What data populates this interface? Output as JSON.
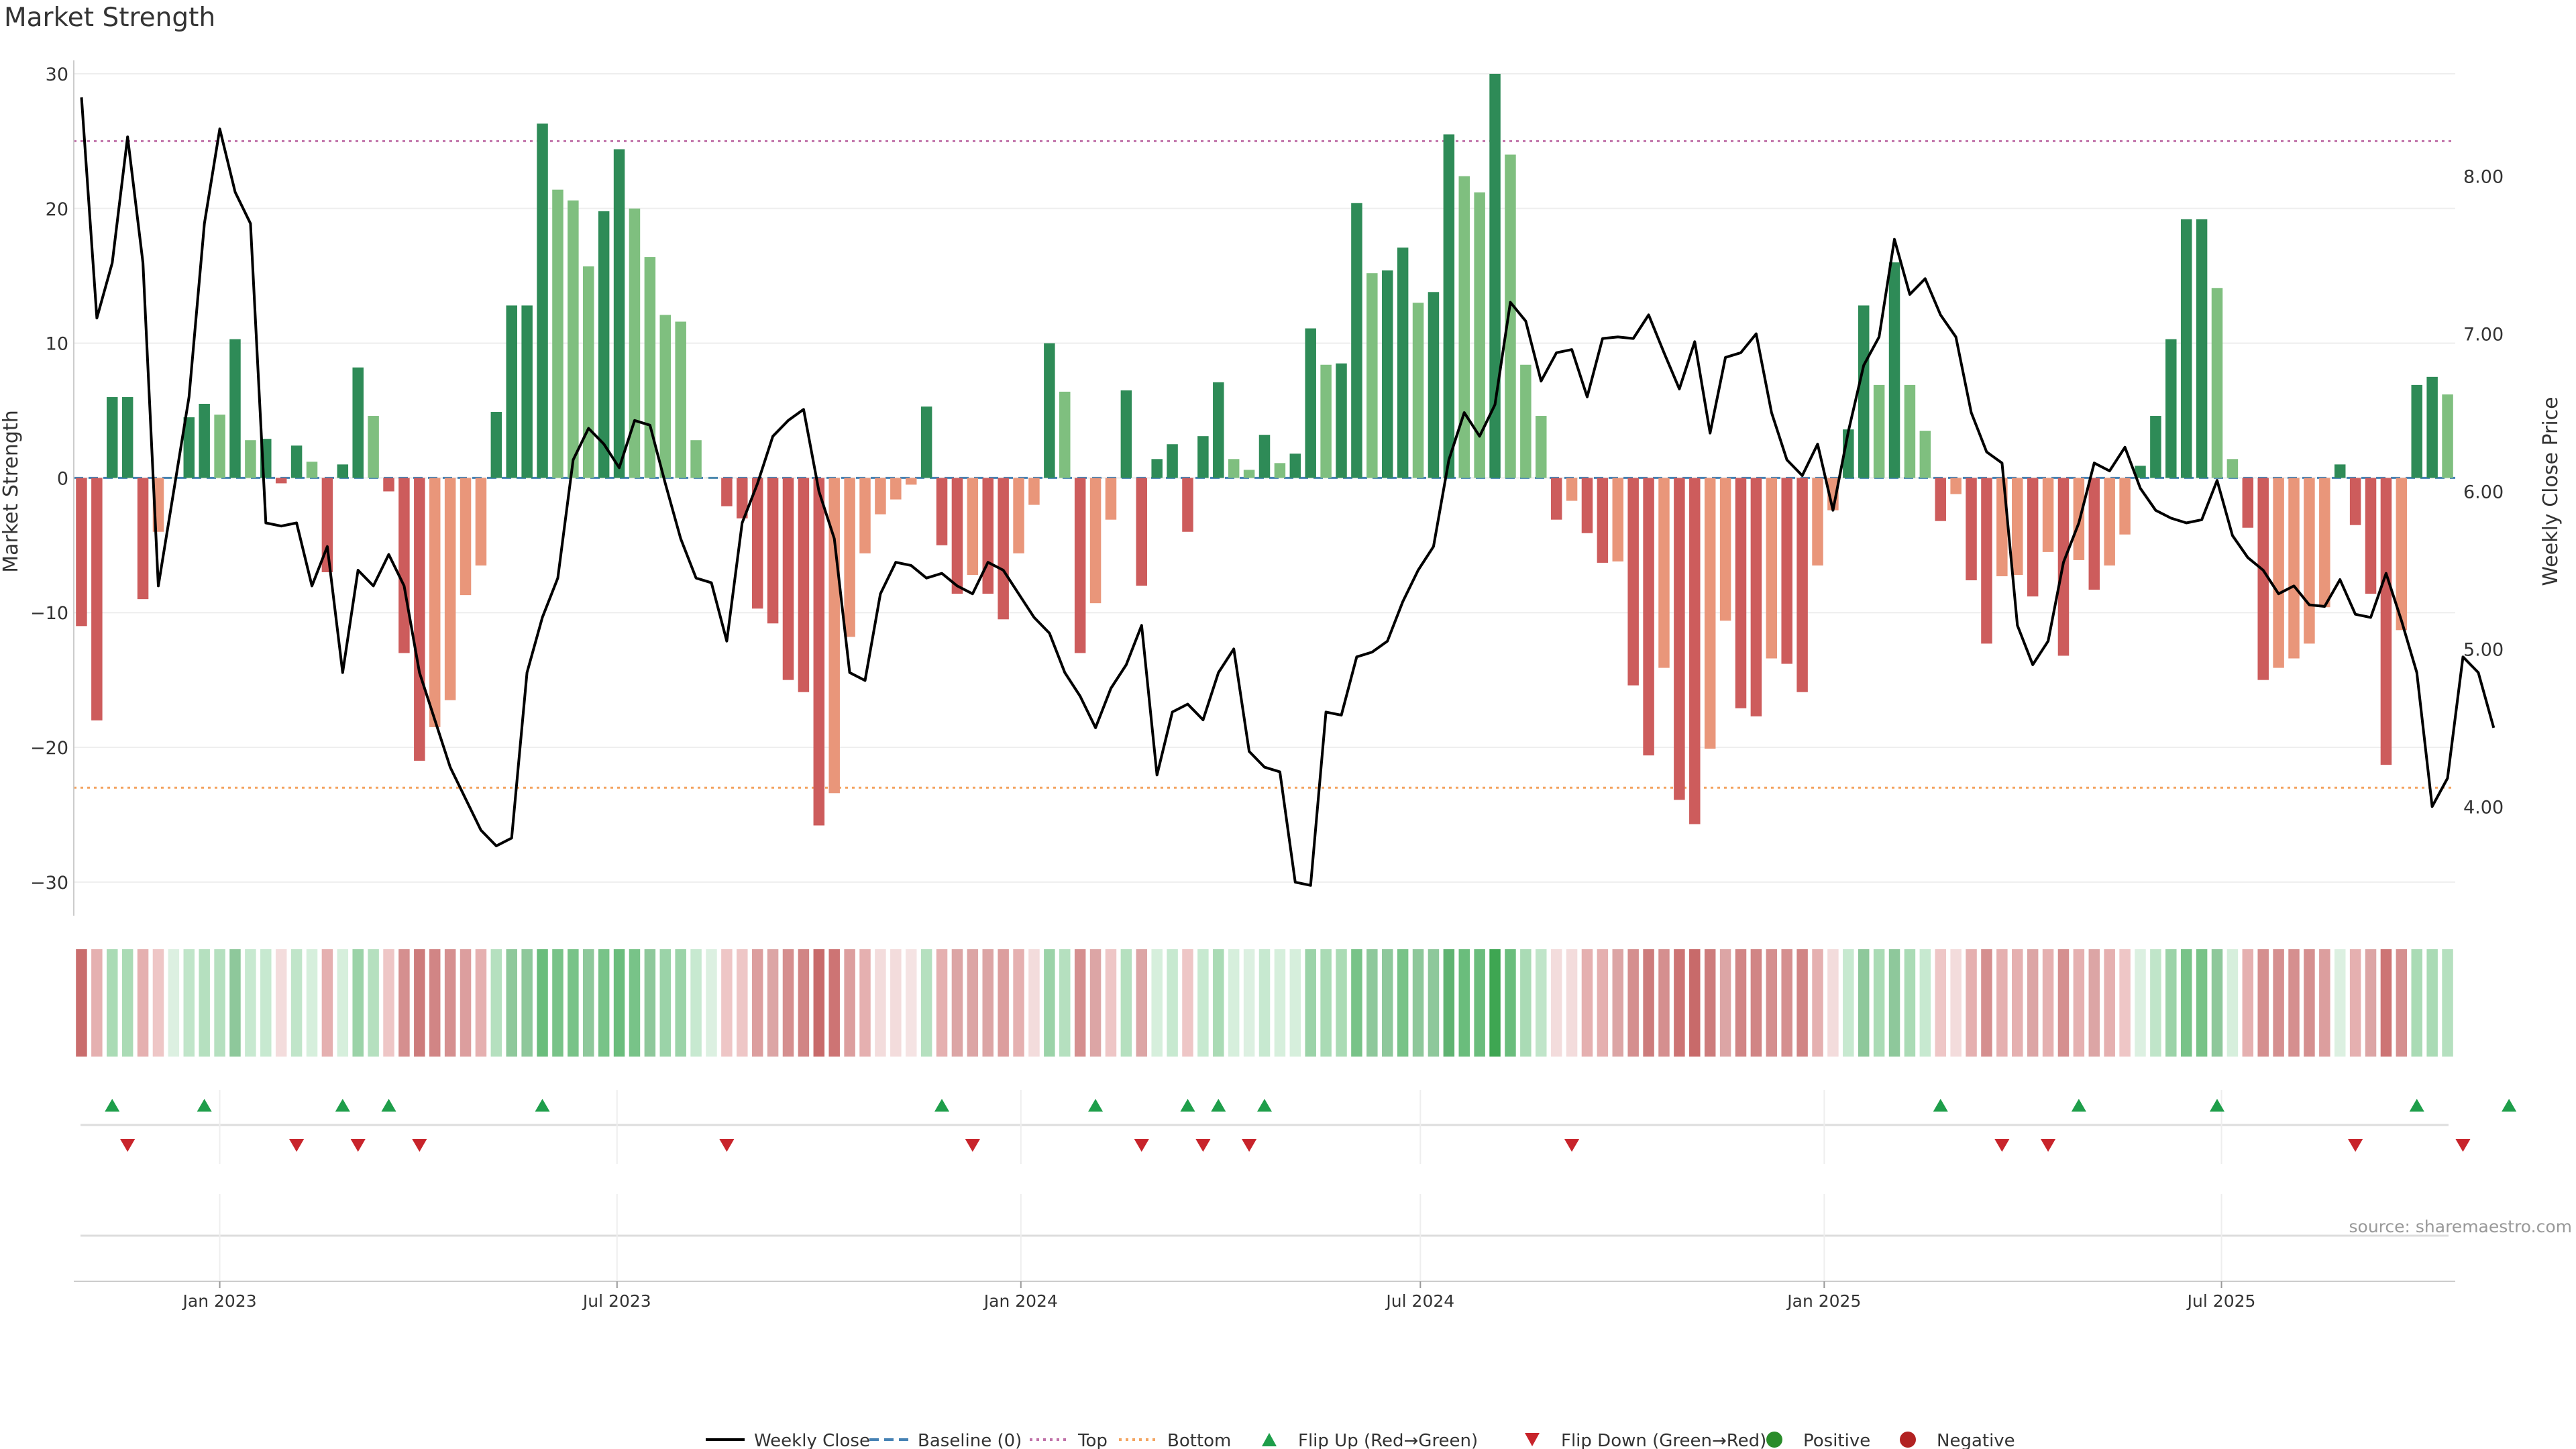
{
  "title": "Market Strength",
  "source": "source: sharemaestro.com",
  "colors": {
    "strong_green": "#2e8b57",
    "light_green": "#7fbf7f",
    "strong_red": "#cd5c5c",
    "light_red": "#e9967a",
    "line": "#000000",
    "baseline": "#4682b4",
    "top": "#c071a8",
    "bottom": "#f4a460",
    "flip_up": "#1e9e4a",
    "flip_down": "#c8242b",
    "positive": "#2a8c2a",
    "negative": "#b22222"
  },
  "legend": [
    {
      "label": "Weekly Close",
      "kind": "line"
    },
    {
      "label": "Baseline (0)",
      "kind": "dashed"
    },
    {
      "label": "Top",
      "kind": "dotted-top"
    },
    {
      "label": "Bottom",
      "kind": "dotted-bottom"
    },
    {
      "label": "Flip Up (Red→Green)",
      "kind": "triangle-up"
    },
    {
      "label": "Flip Down (Green→Red)",
      "kind": "triangle-down"
    },
    {
      "label": "Positive",
      "kind": "dot-positive"
    },
    {
      "label": "Negative",
      "kind": "dot-negative"
    }
  ],
  "chart_data": {
    "type": "bar",
    "start_date": "2022-10-30",
    "ylabel_left": "Market Strength",
    "ylabel_right": "Weekly Close Price",
    "left_ticks": [
      -30,
      -20,
      -10,
      0,
      10,
      20,
      30
    ],
    "left_tick_labels": [
      "−30",
      "−20",
      "−10",
      "0",
      "10",
      "20",
      "30"
    ],
    "left_ylim": [
      -32,
      30
    ],
    "right_ticks": [
      4.0,
      5.0,
      6.0,
      7.0,
      8.0
    ],
    "right_tick_labels": [
      "4.00",
      "5.00",
      "6.00",
      "7.00",
      "8.00"
    ],
    "right_ylim": [
      3.35,
      8.65
    ],
    "x_ticks": [
      {
        "date": "2023-01-01",
        "label": "Jan 2023"
      },
      {
        "date": "2023-07-01",
        "label": "Jul 2023"
      },
      {
        "date": "2024-01-01",
        "label": "Jan 2024"
      },
      {
        "date": "2024-07-01",
        "label": "Jul 2024"
      },
      {
        "date": "2025-01-01",
        "label": "Jan 2025"
      },
      {
        "date": "2025-07-01",
        "label": "Jul 2025"
      }
    ],
    "top_level": 25,
    "bottom_level": -23,
    "strength": [
      -11,
      -18,
      6,
      6,
      -9,
      -4,
      0,
      4.5,
      5.5,
      4.7,
      10.3,
      2.8,
      2.9,
      -0.4,
      2.4,
      1.2,
      -7,
      1,
      8.2,
      4.6,
      -1,
      -13,
      -21,
      -18.5,
      -16.5,
      -8.7,
      -6.5,
      4.9,
      12.8,
      12.8,
      26.3,
      21.4,
      20.6,
      15.7,
      19.8,
      24.4,
      20,
      16.4,
      12.1,
      11.6,
      2.8,
      0,
      -2.1,
      -3,
      -9.7,
      -10.8,
      -15,
      -15.9,
      -25.8,
      -23.4,
      -11.8,
      -5.6,
      -2.7,
      -1.6,
      -0.5,
      5.3,
      -5,
      -8.6,
      -7.2,
      -8.6,
      -10.5,
      -5.6,
      -2,
      10,
      6.4,
      -13,
      -9.3,
      -3.1,
      6.5,
      -8,
      1.4,
      2.5,
      -4,
      3.1,
      7.1,
      1.4,
      0.6,
      3.2,
      1.1,
      1.8,
      11.1,
      8.4,
      8.5,
      20.4,
      15.2,
      15.4,
      17.1,
      13,
      13.8,
      25.5,
      22.4,
      21.2,
      30,
      24,
      8.4,
      4.6,
      -3.1,
      -1.7,
      -4.1,
      -6.3,
      -6.2,
      -15.4,
      -20.6,
      -14.1,
      -23.9,
      -25.7,
      -20.1,
      -10.6,
      -17.1,
      -17.7,
      -13.4,
      -13.8,
      -15.9,
      -6.5,
      -2.4,
      3.6,
      12.8,
      6.9,
      16,
      6.9,
      3.5,
      -3.2,
      -1.2,
      -7.6,
      -12.3,
      -7.3,
      -7.2,
      -8.8,
      -5.5,
      -13.2,
      -6.1,
      -8.3,
      -6.5,
      -4.2,
      0.9,
      4.6,
      10.3,
      19.2,
      19.2,
      14.1,
      1.4,
      -3.7,
      -15,
      -14.1,
      -13.4,
      -12.3,
      -9.6,
      1,
      -3.5,
      -8.6,
      -21.3,
      -11.3,
      6.9,
      7.5,
      6.2
    ],
    "close": [
      8.5,
      7.1,
      7.45,
      8.25,
      7.45,
      5.4,
      6.0,
      6.6,
      7.7,
      8.3,
      7.9,
      7.7,
      5.8,
      5.78,
      5.8,
      5.4,
      5.65,
      4.85,
      5.5,
      5.4,
      5.6,
      5.4,
      4.85,
      4.55,
      4.25,
      4.05,
      3.85,
      3.75,
      3.8,
      4.85,
      5.2,
      5.45,
      6.2,
      6.4,
      6.3,
      6.15,
      6.45,
      6.42,
      6.05,
      5.7,
      5.45,
      5.42,
      5.05,
      5.8,
      6.05,
      6.35,
      6.45,
      6.52,
      6.0,
      5.7,
      4.85,
      4.8,
      5.35,
      5.55,
      5.53,
      5.45,
      5.48,
      5.4,
      5.35,
      5.55,
      5.5,
      5.35,
      5.2,
      5.1,
      4.85,
      4.7,
      4.5,
      4.75,
      4.9,
      5.15,
      4.2,
      4.6,
      4.65,
      4.55,
      4.85,
      5.0,
      4.35,
      4.25,
      4.22,
      3.52,
      3.5,
      4.6,
      4.58,
      4.95,
      4.98,
      5.05,
      5.3,
      5.5,
      5.65,
      6.2,
      6.5,
      6.35,
      6.55,
      7.2,
      7.08,
      6.7,
      6.88,
      6.9,
      6.6,
      6.97,
      6.98,
      6.97,
      7.12,
      6.88,
      6.65,
      6.95,
      6.37,
      6.85,
      6.88,
      7.0,
      6.5,
      6.2,
      6.1,
      6.3,
      5.88,
      6.38,
      6.8,
      6.98,
      7.6,
      7.25,
      7.35,
      7.12,
      6.98,
      6.5,
      6.25,
      6.18,
      5.15,
      4.9,
      5.05,
      5.55,
      5.8,
      6.18,
      6.13,
      6.28,
      6.02,
      5.88,
      5.83,
      5.8,
      5.82,
      6.07,
      5.72,
      5.58,
      5.5,
      5.35,
      5.4,
      5.28,
      5.27,
      5.44,
      5.22,
      5.2,
      5.48,
      5.18,
      4.85,
      4.0,
      4.18,
      4.95,
      4.85,
      4.5
    ],
    "heat_colors": [
      "#c96d6d",
      "#e5b0b0",
      "#aadbb5",
      "#aadbb5",
      "#e5b0b0",
      "#eec6c6",
      "#dcf0e1",
      "#c0e5c9",
      "#b5e0bf",
      "#b5e0bf",
      "#8ec89b",
      "#c7e9d0",
      "#c7e9d0",
      "#f3dcdc",
      "#c0e5c9",
      "#d6efdc",
      "#e5b0b0",
      "#d6efdc",
      "#9bd3a8",
      "#b5e0bf",
      "#eec6c6",
      "#d58f8f",
      "#cd7c7c",
      "#d18585",
      "#d58f8f",
      "#dc9e9e",
      "#e5b0b0",
      "#b5e0bf",
      "#8ec89b",
      "#8ec89b",
      "#6abd7c",
      "#78c388",
      "#78c388",
      "#8ec89b",
      "#78c388",
      "#6abd7c",
      "#78c388",
      "#8ec89b",
      "#9bd3a8",
      "#9bd3a8",
      "#c7e9d0",
      "#dcf0e1",
      "#eec6c6",
      "#eec6c6",
      "#dc9e9e",
      "#dca5a5",
      "#d58f8f",
      "#d18585",
      "#c86a6a",
      "#cd7474",
      "#dc9e9e",
      "#e5b0b0",
      "#f3dcdc",
      "#f3dcdc",
      "#f5e3e3",
      "#b5e0bf",
      "#e5b0b0",
      "#dca5a5",
      "#dca5a5",
      "#dca5a5",
      "#dc9e9e",
      "#e5b0b0",
      "#f3dcdc",
      "#9bd3a8",
      "#b5e0bf",
      "#d58f8f",
      "#dca5a5",
      "#eec6c6",
      "#b5e0bf",
      "#dca5a5",
      "#d6efdc",
      "#c7e9d0",
      "#eec6c6",
      "#c7e9d0",
      "#aadbb5",
      "#d6efdc",
      "#dcf0e1",
      "#c7e9d0",
      "#d6efdc",
      "#d6efdc",
      "#9bd3a8",
      "#aadbb5",
      "#aadbb5",
      "#78c388",
      "#8ec89b",
      "#8ec89b",
      "#78c388",
      "#8ec89b",
      "#8ec89b",
      "#5fb371",
      "#6abd7c",
      "#6abd7c",
      "#3ea652",
      "#6abd7c",
      "#aadbb5",
      "#c0e5c9",
      "#f3dcdc",
      "#f3dcdc",
      "#e5b0b0",
      "#e5b0b0",
      "#dca5a5",
      "#d58f8f",
      "#cd7c7c",
      "#d58f8f",
      "#cd7474",
      "#c86a6a",
      "#cd7c7c",
      "#dca5a5",
      "#d18585",
      "#d18585",
      "#d58f8f",
      "#d58f8f",
      "#d18585",
      "#e5b0b0",
      "#f3dcdc",
      "#c7e9d0",
      "#8ec89b",
      "#aadbb5",
      "#8ec89b",
      "#aadbb5",
      "#c7e9d0",
      "#eec6c6",
      "#f3dcdc",
      "#e5b0b0",
      "#d58f8f",
      "#e5b0b0",
      "#e5b0b0",
      "#dca5a5",
      "#e5b0b0",
      "#d58f8f",
      "#e5b0b0",
      "#dca5a5",
      "#e5b0b0",
      "#eec6c6",
      "#dcf0e1",
      "#c0e5c9",
      "#9bd3a8",
      "#78c388",
      "#78c388",
      "#8ec89b",
      "#d6efdc",
      "#e5b0b0",
      "#d58f8f",
      "#d58f8f",
      "#d58f8f",
      "#d58f8f",
      "#dc9e9e",
      "#dcf0e1",
      "#e5b0b0",
      "#dca5a5",
      "#cd7474",
      "#d58f8f",
      "#aadbb5",
      "#aadbb5",
      "#b5e0bf"
    ],
    "flip_up": [
      "2022-11-13",
      "2022-12-25",
      "2023-02-26",
      "2023-03-19",
      "2023-05-28",
      "2023-11-26",
      "2024-02-04",
      "2024-03-17",
      "2024-03-31",
      "2024-04-21",
      "2025-02-23",
      "2025-04-27",
      "2025-06-29",
      "2025-09-28",
      "2025-11-09"
    ],
    "flip_down": [
      "2022-11-20",
      "2023-02-05",
      "2023-03-05",
      "2023-04-02",
      "2023-08-20",
      "2023-12-10",
      "2024-02-25",
      "2024-03-24",
      "2024-04-14",
      "2024-09-08",
      "2025-03-23",
      "2025-04-13",
      "2025-08-31",
      "2025-10-19"
    ]
  }
}
